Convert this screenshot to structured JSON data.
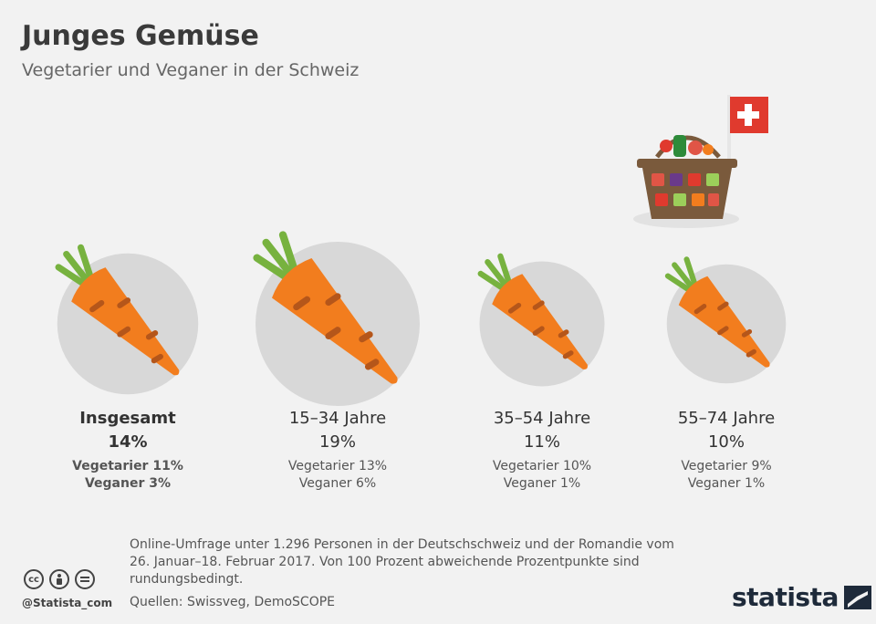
{
  "header": {
    "title": "Junges Gemüse",
    "subtitle": "Vegetarier und Veganer in der Schweiz"
  },
  "chart_data": {
    "type": "bubble",
    "unit": "%",
    "categories": [
      "Insgesamt",
      "15–34 Jahre",
      "35–54 Jahre",
      "55–74 Jahre"
    ],
    "total": [
      14,
      19,
      11,
      10
    ],
    "series": [
      {
        "name": "Vegetarier",
        "values": [
          11,
          13,
          10,
          9
        ]
      },
      {
        "name": "Veganer",
        "values": [
          3,
          6,
          1,
          1
        ]
      }
    ]
  },
  "groups": [
    {
      "label": "Insgesamt",
      "total": "14%",
      "vegetarier": "Vegetarier 11%",
      "veganer": "Veganer 3%"
    },
    {
      "label": "15–34 Jahre",
      "total": "19%",
      "vegetarier": "Vegetarier 13%",
      "veganer": "Veganer 6%"
    },
    {
      "label": "35–54 Jahre",
      "total": "11%",
      "vegetarier": "Vegetarier 10%",
      "veganer": "Veganer 1%"
    },
    {
      "label": "55–74 Jahre",
      "total": "10%",
      "vegetarier": "Vegetarier 9%",
      "veganer": "Veganer 1%"
    }
  ],
  "footer": {
    "note": "Online-Umfrage unter 1.296 Personen in der Deutschschweiz und der Romandie vom 26. Januar–18. Februar 2017. Von 100 Prozent abweichende Prozentpunkte sind rundungsbedingt.",
    "source": "Quellen: Swissveg, DemoSCOPE",
    "handle": "@Statista_com",
    "brand": "statista"
  },
  "colors": {
    "carrot": "#f27d1e",
    "carrot_marks": "#b5561a",
    "leaf": "#77b23f",
    "circle": "#d8d8d8",
    "flag": "#e03a2e"
  }
}
